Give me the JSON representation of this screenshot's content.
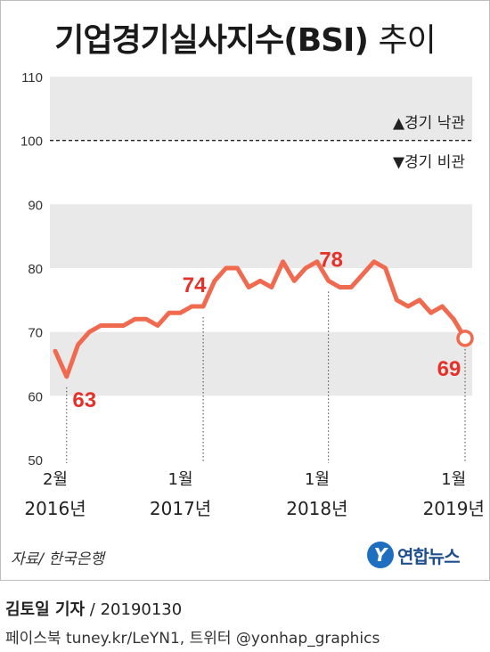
{
  "title": {
    "main": "기업경기실사지수(BSI)",
    "sub": "추이"
  },
  "chart_data": {
    "type": "line",
    "ylim": [
      50,
      110
    ],
    "yticks": [
      50,
      60,
      70,
      80,
      90,
      100,
      110
    ],
    "reference_line": 100,
    "legend_above": "▲경기 낙관",
    "legend_below": "▼경기 비관",
    "x_axis_labels": [
      {
        "month": "2월",
        "year": "2016년",
        "index": 0
      },
      {
        "month": "1월",
        "year": "2017년",
        "index": 11
      },
      {
        "month": "1월",
        "year": "2018년",
        "index": 23
      },
      {
        "month": "1월",
        "year": "2019년",
        "index": 35
      }
    ],
    "series": [
      {
        "values": [
          67,
          63,
          68,
          70,
          71,
          71,
          71,
          72,
          72,
          71,
          73,
          73,
          74,
          74,
          78,
          80,
          80,
          77,
          78,
          77,
          81,
          78,
          80,
          81,
          78,
          77,
          77,
          79,
          81,
          80,
          75,
          74,
          75,
          73,
          74,
          72,
          69
        ]
      }
    ],
    "annotations": [
      {
        "index": 1,
        "label": "63"
      },
      {
        "index": 13,
        "label": "74"
      },
      {
        "index": 24,
        "label": "78"
      },
      {
        "index": 36,
        "label": "69"
      }
    ],
    "line_color": "#f06a50",
    "label_color": "#e5312a"
  },
  "source": "자료/ 한국은행",
  "logo": {
    "mark": "Y",
    "text": "연합뉴스"
  },
  "credit": {
    "name": "김토일 기자",
    "date": " / 20190130"
  },
  "footer": "페이스북 tuney.kr/LeYN1, 트위터 @yonhap_graphics"
}
